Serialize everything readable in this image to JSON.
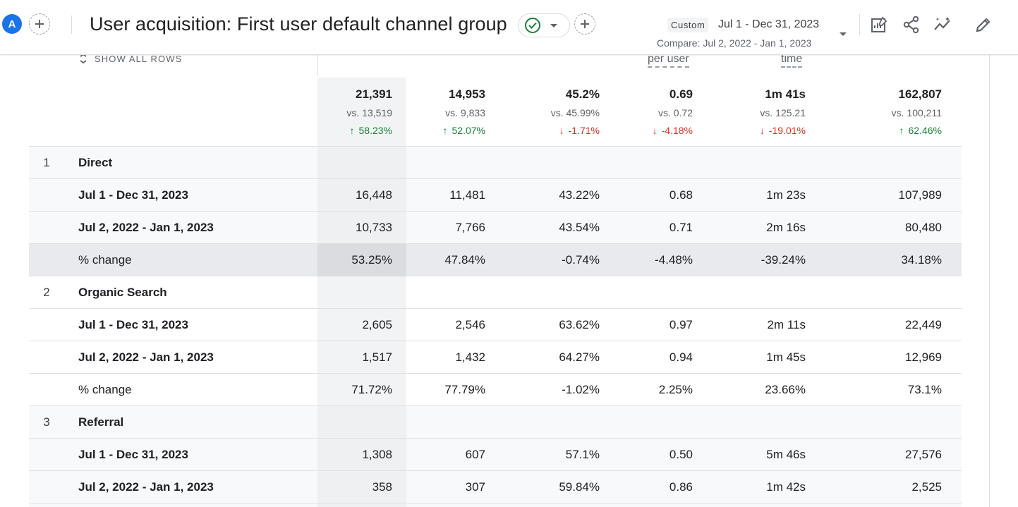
{
  "header": {
    "avatar_letter": "A",
    "title": "User acquisition: First user default channel group",
    "custom_label": "Custom",
    "date_range": "Jul 1 - Dec 31, 2023",
    "compare_range": "Compare: Jul 2, 2022 - Jan 1, 2023",
    "icons": [
      "add-comparison-icon",
      "check-circle-icon",
      "chevron-down-icon",
      "add-icon",
      "customize-report-icon",
      "share-icon",
      "insights-icon",
      "edit-icon"
    ]
  },
  "table": {
    "show_all_rows": "SHOW ALL ROWS",
    "partial_headers": {
      "per_user": "per user",
      "time": "time"
    },
    "totals": [
      {
        "value": "21,391",
        "vs": "vs. 13,519",
        "change": "58.23%",
        "dir": "up"
      },
      {
        "value": "14,953",
        "vs": "vs. 9,833",
        "change": "52.07%",
        "dir": "up"
      },
      {
        "value": "45.2%",
        "vs": "vs. 45.99%",
        "change": "-1.71%",
        "dir": "down"
      },
      {
        "value": "0.69",
        "vs": "vs. 0.72",
        "change": "-4.18%",
        "dir": "down"
      },
      {
        "value": "1m 41s",
        "vs": "vs. 125.21",
        "change": "-19.01%",
        "dir": "down"
      },
      {
        "value": "162,807",
        "vs": "vs. 100,211",
        "change": "62.46%",
        "dir": "up"
      }
    ],
    "groups": [
      {
        "index": "1",
        "name": "Direct",
        "rows": [
          {
            "label": "Jul 1 - Dec 31, 2023",
            "values": [
              "16,448",
              "11,481",
              "43.22%",
              "0.68",
              "1m 23s",
              "107,989"
            ]
          },
          {
            "label": "Jul 2, 2022 - Jan 1, 2023",
            "values": [
              "10,733",
              "7,766",
              "43.54%",
              "0.71",
              "2m 16s",
              "80,480"
            ]
          },
          {
            "label": "% change",
            "values": [
              "53.25%",
              "47.84%",
              "-0.74%",
              "-4.48%",
              "-39.24%",
              "34.18%"
            ]
          }
        ]
      },
      {
        "index": "2",
        "name": "Organic Search",
        "rows": [
          {
            "label": "Jul 1 - Dec 31, 2023",
            "values": [
              "2,605",
              "2,546",
              "63.62%",
              "0.97",
              "2m 11s",
              "22,449"
            ]
          },
          {
            "label": "Jul 2, 2022 - Jan 1, 2023",
            "values": [
              "1,517",
              "1,432",
              "64.27%",
              "0.94",
              "1m 45s",
              "12,969"
            ]
          },
          {
            "label": "% change",
            "values": [
              "71.72%",
              "77.79%",
              "-1.02%",
              "2.25%",
              "23.66%",
              "73.1%"
            ]
          }
        ]
      },
      {
        "index": "3",
        "name": "Referral",
        "rows": [
          {
            "label": "Jul 1 - Dec 31, 2023",
            "values": [
              "1,308",
              "607",
              "57.1%",
              "0.50",
              "5m 46s",
              "27,576"
            ]
          },
          {
            "label": "Jul 2, 2022 - Jan 1, 2023",
            "values": [
              "358",
              "307",
              "59.84%",
              "0.86",
              "1m 42s",
              "2,525"
            ]
          }
        ]
      }
    ]
  },
  "colors": {
    "accent": "#1a73e8",
    "positive": "#188038",
    "negative": "#d93025",
    "text": "#202124",
    "muted": "#5f6368"
  }
}
